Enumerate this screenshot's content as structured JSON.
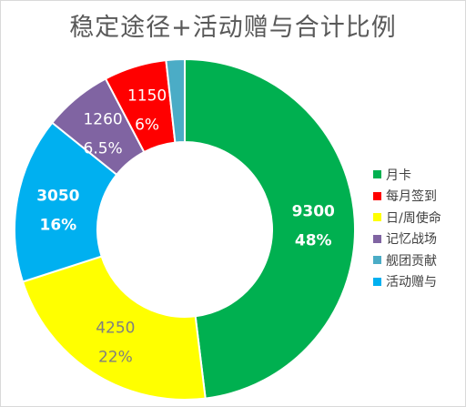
{
  "chart_data": {
    "type": "pie",
    "title": "稳定途径+活动赠与合计比例",
    "donut": true,
    "legend_position": "right",
    "slices": [
      {
        "name": "月卡",
        "value": 9300,
        "percent_label": "48%",
        "color": "#00b050",
        "label_color": "#ffffff",
        "bold": true
      },
      {
        "name": "日/周使命",
        "value": 4250,
        "percent_label": "22%",
        "color": "#ffff00",
        "label_color": "#7f7f7f",
        "bold": false
      },
      {
        "name": "活动赠与",
        "value": 3050,
        "percent_label": "16%",
        "color": "#00b0f0",
        "label_color": "#ffffff",
        "bold": true
      },
      {
        "name": "记忆战场",
        "value": 1260,
        "percent_label": "6.5%",
        "color": "#8064a2",
        "label_color": "#ffffff",
        "bold": false
      },
      {
        "name": "每月签到",
        "value": 1150,
        "percent_label": "6%",
        "color": "#ff0000",
        "label_color": "#ffffff",
        "bold": false
      },
      {
        "name": "舰团贡献",
        "value": 340,
        "percent_label": "",
        "color": "#4bacc6",
        "label_color": "#ffffff",
        "bold": false
      }
    ],
    "legend": [
      "月卡",
      "每月签到",
      "日/周使命",
      "记忆战场",
      "舰团贡献",
      "活动赠与"
    ]
  }
}
